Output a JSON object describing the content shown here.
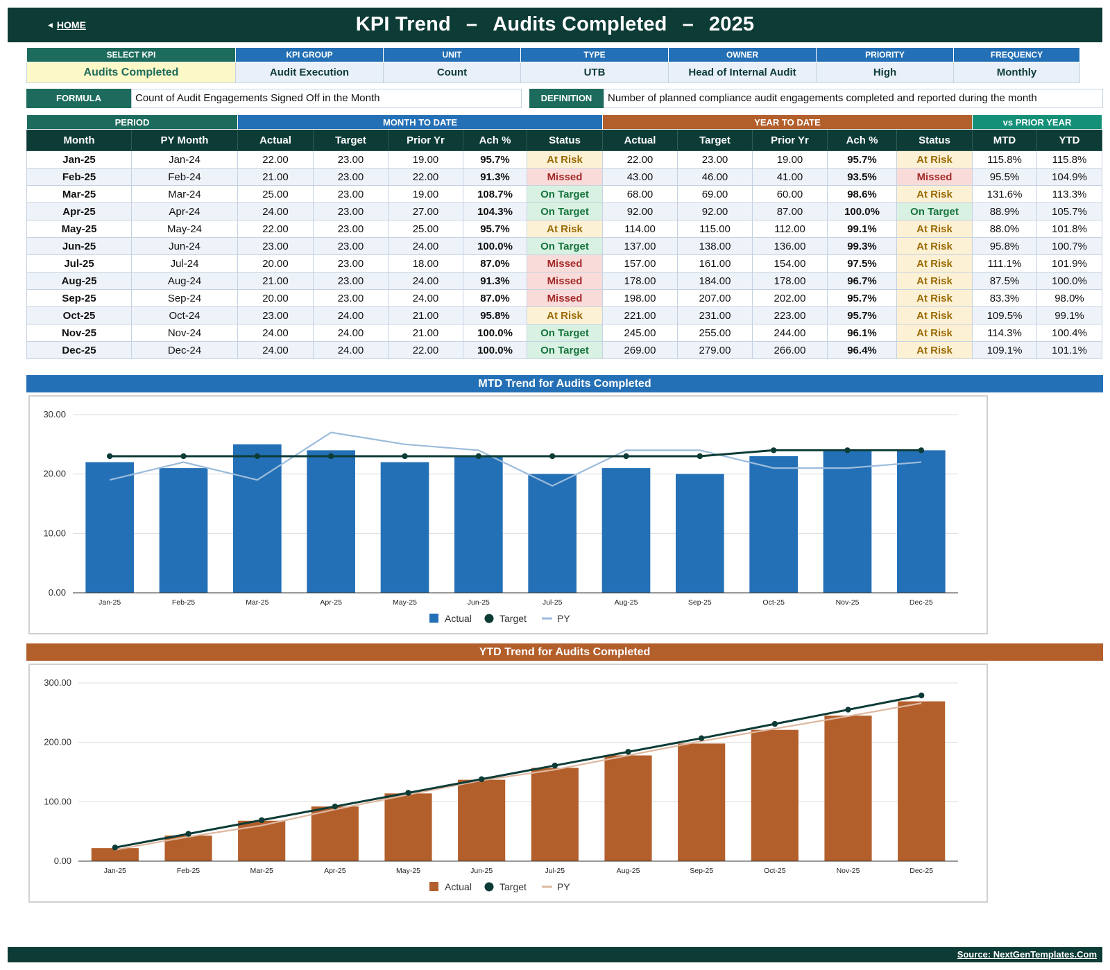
{
  "header": {
    "home_label": "HOME",
    "title_prefix": "KPI Trend",
    "kpi_name": "Audits Completed",
    "year": "2025",
    "dash": "–"
  },
  "kpi_info": {
    "headers": [
      "SELECT KPI",
      "KPI GROUP",
      "UNIT",
      "TYPE",
      "OWNER",
      "PRIORITY",
      "FREQUENCY"
    ],
    "values": [
      "Audits Completed",
      "Audit Execution",
      "Count",
      "UTB",
      "Head of Internal Audit",
      "High",
      "Monthly"
    ]
  },
  "formula": {
    "formula_label": "FORMULA",
    "formula_text": "Count of Audit Engagements Signed Off in the Month",
    "definition_label": "DEFINITION",
    "definition_text": "Number of planned compliance audit engagements completed and reported during the month"
  },
  "table": {
    "groups": [
      "PERIOD",
      "MONTH TO DATE",
      "YEAR TO DATE",
      "vs PRIOR YEAR"
    ],
    "columns": [
      "Month",
      "PY Month",
      "Actual",
      "Target",
      "Prior Yr",
      "Ach %",
      "Status",
      "Actual",
      "Target",
      "Prior Yr",
      "Ach %",
      "Status",
      "MTD",
      "YTD"
    ],
    "rows": [
      [
        "Jan-25",
        "Jan-24",
        "22.00",
        "23.00",
        "19.00",
        "95.7%",
        "At Risk",
        "22.00",
        "23.00",
        "19.00",
        "95.7%",
        "At Risk",
        "115.8%",
        "115.8%"
      ],
      [
        "Feb-25",
        "Feb-24",
        "21.00",
        "23.00",
        "22.00",
        "91.3%",
        "Missed",
        "43.00",
        "46.00",
        "41.00",
        "93.5%",
        "Missed",
        "95.5%",
        "104.9%"
      ],
      [
        "Mar-25",
        "Mar-24",
        "25.00",
        "23.00",
        "19.00",
        "108.7%",
        "On Target",
        "68.00",
        "69.00",
        "60.00",
        "98.6%",
        "At Risk",
        "131.6%",
        "113.3%"
      ],
      [
        "Apr-25",
        "Apr-24",
        "24.00",
        "23.00",
        "27.00",
        "104.3%",
        "On Target",
        "92.00",
        "92.00",
        "87.00",
        "100.0%",
        "On Target",
        "88.9%",
        "105.7%"
      ],
      [
        "May-25",
        "May-24",
        "22.00",
        "23.00",
        "25.00",
        "95.7%",
        "At Risk",
        "114.00",
        "115.00",
        "112.00",
        "99.1%",
        "At Risk",
        "88.0%",
        "101.8%"
      ],
      [
        "Jun-25",
        "Jun-24",
        "23.00",
        "23.00",
        "24.00",
        "100.0%",
        "On Target",
        "137.00",
        "138.00",
        "136.00",
        "99.3%",
        "At Risk",
        "95.8%",
        "100.7%"
      ],
      [
        "Jul-25",
        "Jul-24",
        "20.00",
        "23.00",
        "18.00",
        "87.0%",
        "Missed",
        "157.00",
        "161.00",
        "154.00",
        "97.5%",
        "At Risk",
        "111.1%",
        "101.9%"
      ],
      [
        "Aug-25",
        "Aug-24",
        "21.00",
        "23.00",
        "24.00",
        "91.3%",
        "Missed",
        "178.00",
        "184.00",
        "178.00",
        "96.7%",
        "At Risk",
        "87.5%",
        "100.0%"
      ],
      [
        "Sep-25",
        "Sep-24",
        "20.00",
        "23.00",
        "24.00",
        "87.0%",
        "Missed",
        "198.00",
        "207.00",
        "202.00",
        "95.7%",
        "At Risk",
        "83.3%",
        "98.0%"
      ],
      [
        "Oct-25",
        "Oct-24",
        "23.00",
        "24.00",
        "21.00",
        "95.8%",
        "At Risk",
        "221.00",
        "231.00",
        "223.00",
        "95.7%",
        "At Risk",
        "109.5%",
        "99.1%"
      ],
      [
        "Nov-25",
        "Nov-24",
        "24.00",
        "24.00",
        "21.00",
        "100.0%",
        "On Target",
        "245.00",
        "255.00",
        "244.00",
        "96.1%",
        "At Risk",
        "114.3%",
        "100.4%"
      ],
      [
        "Dec-25",
        "Dec-24",
        "24.00",
        "24.00",
        "22.00",
        "100.0%",
        "On Target",
        "269.00",
        "279.00",
        "266.00",
        "96.4%",
        "At Risk",
        "109.1%",
        "101.1%"
      ]
    ]
  },
  "chart_data": [
    {
      "type": "bar",
      "title": "MTD Trend for Audits Completed",
      "categories": [
        "Jan-25",
        "Feb-25",
        "Mar-25",
        "Apr-25",
        "May-25",
        "Jun-25",
        "Jul-25",
        "Aug-25",
        "Sep-25",
        "Oct-25",
        "Nov-25",
        "Dec-25"
      ],
      "series": [
        {
          "name": "Actual",
          "kind": "bar",
          "color": "#2470b6",
          "values": [
            22,
            21,
            25,
            24,
            22,
            23,
            20,
            21,
            20,
            23,
            24,
            24
          ]
        },
        {
          "name": "Target",
          "kind": "line-markers",
          "color": "#0d3b36",
          "values": [
            23,
            23,
            23,
            23,
            23,
            23,
            23,
            23,
            23,
            24,
            24,
            24
          ]
        },
        {
          "name": "PY",
          "kind": "line",
          "color": "#9bbcdc",
          "values": [
            19,
            22,
            19,
            27,
            25,
            24,
            18,
            24,
            24,
            21,
            21,
            22
          ]
        }
      ],
      "ylim": [
        0,
        30
      ],
      "yticks": [
        "0.00",
        "10.00",
        "20.00",
        "30.00"
      ],
      "grid": true,
      "legend": "bottom-center",
      "banner_color": "#2470b6"
    },
    {
      "type": "bar",
      "title": "YTD Trend for Audits Completed",
      "categories": [
        "Jan-25",
        "Feb-25",
        "Mar-25",
        "Apr-25",
        "May-25",
        "Jun-25",
        "Jul-25",
        "Aug-25",
        "Sep-25",
        "Oct-25",
        "Nov-25",
        "Dec-25"
      ],
      "series": [
        {
          "name": "Actual",
          "kind": "bar",
          "color": "#b35f2c",
          "values": [
            22,
            43,
            68,
            92,
            114,
            137,
            157,
            178,
            198,
            221,
            245,
            269
          ]
        },
        {
          "name": "Target",
          "kind": "line-markers",
          "color": "#0d3b36",
          "values": [
            23,
            46,
            69,
            92,
            115,
            138,
            161,
            184,
            207,
            231,
            255,
            279
          ]
        },
        {
          "name": "PY",
          "kind": "line",
          "color": "#deb8a0",
          "values": [
            19,
            41,
            60,
            87,
            112,
            136,
            154,
            178,
            202,
            223,
            244,
            266
          ]
        }
      ],
      "ylim": [
        0,
        300
      ],
      "yticks": [
        "0.00",
        "100.00",
        "200.00",
        "300.00"
      ],
      "grid": true,
      "legend": "bottom-center",
      "banner_color": "#b35f2c"
    }
  ],
  "footer": {
    "source_label": "Source: NextGenTemplates.Com"
  },
  "colors": {
    "dark_green": "#0d3b36",
    "mtd_blue": "#2470b6",
    "ytd_orange": "#b35f2c",
    "vs_py_teal": "#159078",
    "at_risk": "#9a6b06",
    "missed": "#a52b2b",
    "on_target": "#18753e"
  }
}
